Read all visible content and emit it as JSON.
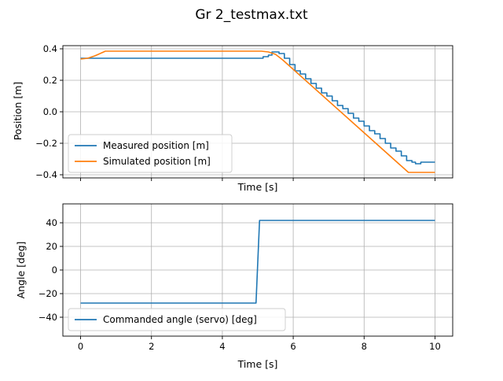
{
  "figure": {
    "title": "Gr 2_testmax.txt"
  },
  "colors": {
    "series1": "#1f77b4",
    "series2": "#ff7f0e",
    "grid": "#b0b0b0",
    "axis": "#000000"
  },
  "chart_data": [
    {
      "type": "line",
      "xlabel": "Time [s]",
      "ylabel": "Position [m]",
      "xlim": [
        -0.5,
        10.5
      ],
      "ylim": [
        -0.42,
        0.42
      ],
      "xticks": [
        0,
        2,
        4,
        6,
        8,
        10
      ],
      "yticks": [
        -0.4,
        -0.2,
        0.0,
        0.2,
        0.4
      ],
      "ytick_labels": [
        "−0.4",
        "−0.2",
        "0.0",
        "0.2",
        "0.4"
      ],
      "grid": true,
      "legend_position": "lower-left",
      "series": [
        {
          "name": "Measured position [m]",
          "step": true,
          "x": [
            0,
            5.15,
            5.3,
            5.4,
            5.6,
            5.75,
            5.9,
            6.05,
            6.2,
            6.35,
            6.5,
            6.65,
            6.8,
            6.95,
            7.1,
            7.25,
            7.4,
            7.55,
            7.7,
            7.85,
            8.0,
            8.15,
            8.3,
            8.45,
            8.6,
            8.75,
            8.9,
            9.05,
            9.2,
            9.35,
            9.45,
            9.6,
            10.0
          ],
          "y": [
            0.34,
            0.35,
            0.36,
            0.38,
            0.37,
            0.34,
            0.3,
            0.26,
            0.24,
            0.21,
            0.18,
            0.15,
            0.12,
            0.1,
            0.07,
            0.04,
            0.02,
            -0.01,
            -0.04,
            -0.06,
            -0.09,
            -0.12,
            -0.14,
            -0.17,
            -0.2,
            -0.23,
            -0.25,
            -0.28,
            -0.31,
            -0.32,
            -0.33,
            -0.32,
            -0.32
          ]
        },
        {
          "name": "Simulated position [m]",
          "step": false,
          "x": [
            0,
            0.2,
            0.4,
            0.6,
            0.7,
            5.1,
            5.3,
            5.5,
            5.7,
            9.25,
            10.0
          ],
          "y": [
            0.335,
            0.34,
            0.355,
            0.375,
            0.385,
            0.385,
            0.38,
            0.365,
            0.33,
            -0.385,
            -0.385
          ]
        }
      ]
    },
    {
      "type": "line",
      "xlabel": "Time [s]",
      "ylabel": "Angle [deg]",
      "xlim": [
        -0.5,
        10.5
      ],
      "ylim": [
        -56,
        56
      ],
      "xticks": [
        0,
        2,
        4,
        6,
        8,
        10
      ],
      "yticks": [
        -40,
        -20,
        0,
        20,
        40
      ],
      "ytick_labels": [
        "−40",
        "−20",
        "0",
        "20",
        "40"
      ],
      "grid": true,
      "legend_position": "lower-left",
      "series": [
        {
          "name": "Commanded angle (servo) [deg]",
          "step": false,
          "x": [
            0,
            4.95,
            5.05,
            10.0
          ],
          "y": [
            -28,
            -28,
            42,
            42
          ]
        }
      ]
    }
  ]
}
